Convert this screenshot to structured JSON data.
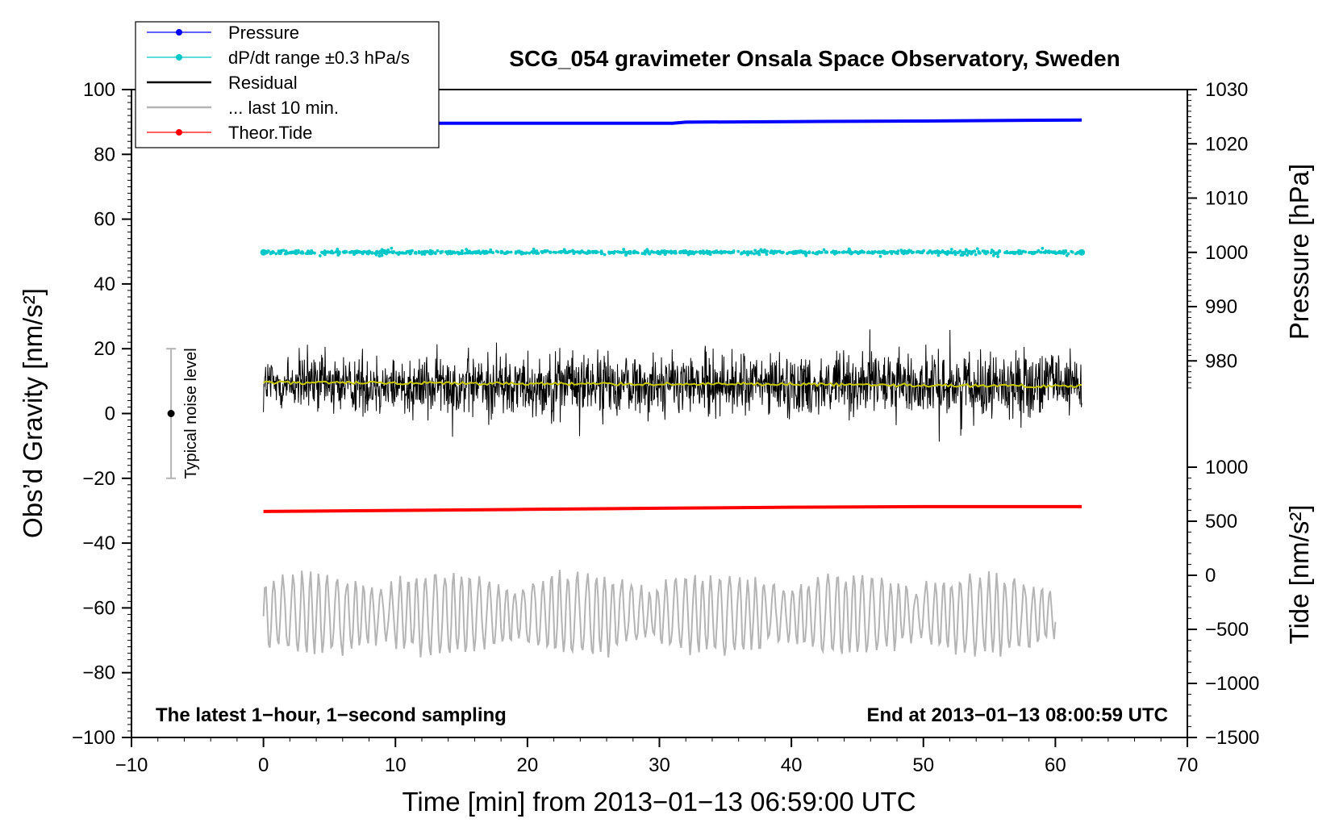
{
  "chart_data": {
    "type": "line",
    "title": "SCG_054 gravimeter Onsala Space Observatory, Sweden",
    "xlabel": "Time [min] from 2013−01−13 06:59:00 UTC",
    "ylabel": "Obs’d Gravity [nm/s²]",
    "y2label": "Pressure [hPa]",
    "y3label": "Tide [nm/s²]",
    "xlim": [
      -10,
      70
    ],
    "ylim": [
      -100,
      100
    ],
    "pressure_axis_lim": [
      970,
      1030
    ],
    "tide_axis_lim": [
      -1500,
      1000
    ],
    "x_ticks": [
      "−10",
      "0",
      "10",
      "20",
      "30",
      "40",
      "50",
      "60",
      "70"
    ],
    "y_ticks": [
      "−100",
      "−80",
      "−60",
      "−40",
      "−20",
      "0",
      "20",
      "40",
      "60",
      "80",
      "100"
    ],
    "pressure_ticks": [
      "980",
      "990",
      "1000",
      "1010",
      "1020",
      "1030"
    ],
    "tide_ticks": [
      "−1500",
      "−1000",
      "−500",
      "0",
      "500",
      "1000"
    ],
    "grid": false,
    "legend_position": "top-left",
    "legend": [
      {
        "label": "Pressure",
        "color": "#0000ff",
        "marker": true
      },
      {
        "label": "dP/dt range ±0.3 hPa/s",
        "color": "#00c8c8",
        "marker": true
      },
      {
        "label": "Residual",
        "color": "#000000",
        "marker": false
      },
      {
        "label": "... last 10 min.",
        "color": "#b4b4b4",
        "marker": false
      },
      {
        "label": "Theor.Tide",
        "color": "#ff0000",
        "marker": true
      }
    ],
    "series": [
      {
        "name": "Pressure",
        "axis": "pressure_hPa",
        "x": [
          0,
          31,
          32,
          40,
          50,
          62
        ],
        "y": [
          1023.8,
          1023.8,
          1024.0,
          1024.1,
          1024.2,
          1024.4
        ],
        "color": "#0000ff"
      },
      {
        "name": "dP/dt range ±0.3 hPa/s",
        "axis": "pressure_hPa",
        "baseline": 1000.0,
        "spread": 0.9,
        "x_range": [
          0,
          62
        ],
        "color": "#00c8c8"
      },
      {
        "name": "Residual",
        "axis": "gravity",
        "baseline": 9.0,
        "spread": 14,
        "x_range": [
          0,
          62
        ],
        "color": "#000000"
      },
      {
        "name": "Residual running mean",
        "axis": "gravity",
        "x": [
          0,
          20,
          40,
          62
        ],
        "y": [
          9.5,
          9.2,
          9.0,
          8.4
        ],
        "color": "#c8c800"
      },
      {
        "name": "... last 10 min.",
        "axis": "gravity",
        "baseline": -62,
        "spread": 11,
        "x_range": [
          0,
          60
        ],
        "color": "#b4b4b4"
      },
      {
        "name": "Theor.Tide",
        "axis": "tide",
        "x": [
          0,
          10,
          20,
          30,
          40,
          50,
          62
        ],
        "y": [
          590,
          600,
          610,
          620,
          630,
          635,
          635
        ],
        "color": "#ff0000"
      }
    ],
    "noise_bar": {
      "label": "Typical noise level",
      "x": -7,
      "center": 0,
      "low": -20,
      "high": 20
    },
    "annotations": {
      "bottom_left": "The latest 1−hour, 1−second sampling",
      "bottom_right": "End at 2013−01−13 08:00:59 UTC"
    }
  }
}
